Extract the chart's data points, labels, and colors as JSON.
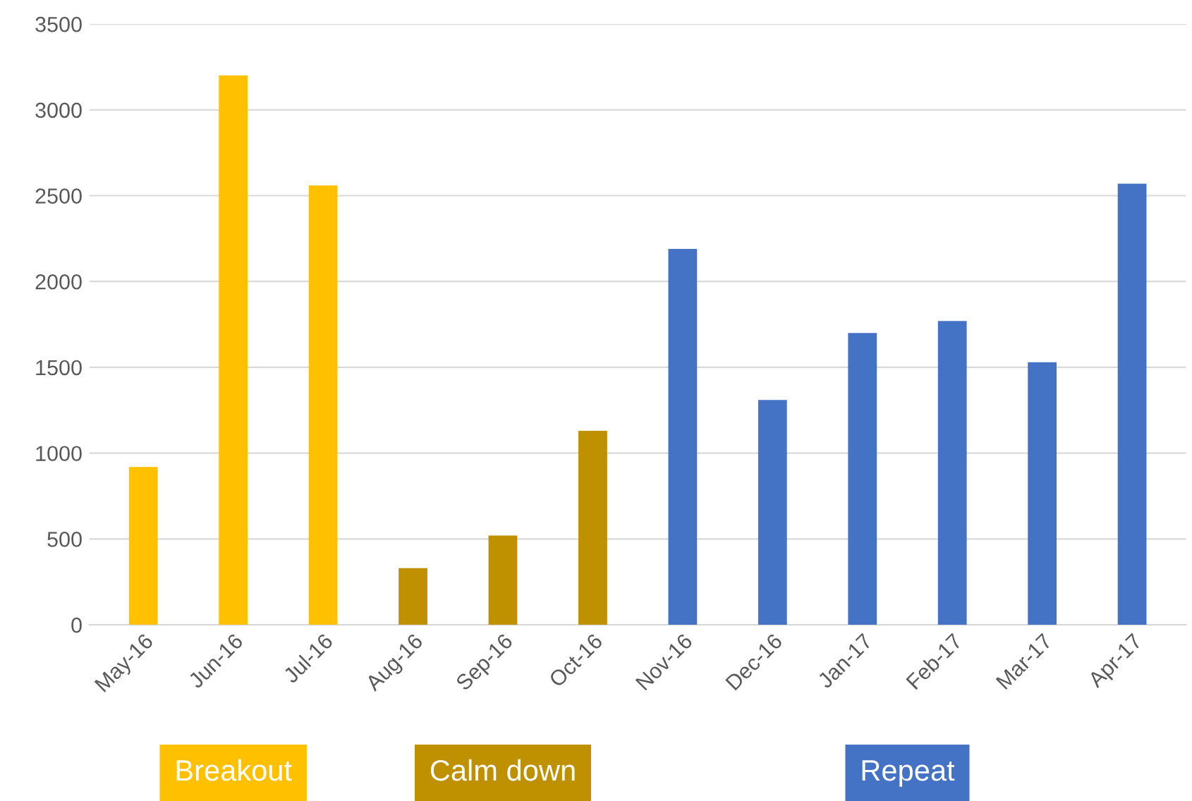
{
  "chart_data": {
    "type": "bar",
    "categories": [
      "May-16",
      "Jun-16",
      "Jul-16",
      "Aug-16",
      "Sep-16",
      "Oct-16",
      "Nov-16",
      "Dec-16",
      "Jan-17",
      "Feb-17",
      "Mar-17",
      "Apr-17"
    ],
    "values": [
      920,
      3200,
      2560,
      330,
      520,
      1130,
      2190,
      1310,
      1700,
      1770,
      1530,
      2570
    ],
    "colors": [
      "#ffc000",
      "#ffc000",
      "#ffc000",
      "#bf9000",
      "#bf9000",
      "#bf9000",
      "#4472c4",
      "#4472c4",
      "#4472c4",
      "#4472c4",
      "#4472c4",
      "#4472c4"
    ],
    "ylim": [
      0,
      3500
    ],
    "yticks": [
      0,
      500,
      1000,
      1500,
      2000,
      2500,
      3000,
      3500
    ],
    "grid": "y",
    "annotations": [
      "Breakout",
      "Calm down",
      "Repeat"
    ]
  }
}
